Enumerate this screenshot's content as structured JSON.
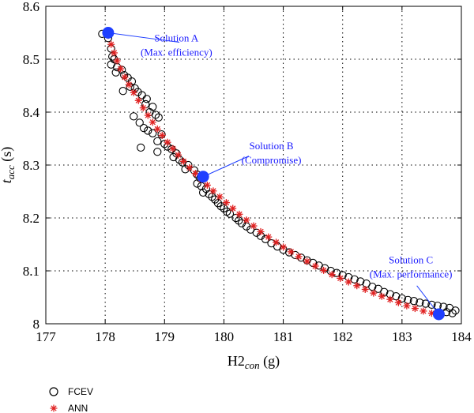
{
  "chart_data": {
    "type": "scatter",
    "xlabel": "H2",
    "xlabel_sub": "con",
    "xlabel_unit": " (g)",
    "ylabel": "t",
    "ylabel_sub": "acc",
    "ylabel_unit": " (s)",
    "xlim": [
      177,
      184
    ],
    "ylim": [
      8,
      8.6
    ],
    "xticks": [
      177,
      178,
      179,
      180,
      181,
      182,
      183,
      184
    ],
    "xtick_labels": [
      "177",
      "178",
      "179",
      "180",
      "181",
      "182",
      "183",
      "184"
    ],
    "yticks": [
      8,
      8.1,
      8.2,
      8.3,
      8.4,
      8.5,
      8.6
    ],
    "ytick_labels": [
      "8",
      "8.1",
      "8.2",
      "8.3",
      "8.4",
      "8.5",
      "8.6"
    ],
    "grid": true,
    "legend_position": "bottom-left",
    "series": [
      {
        "name": "FCEV",
        "marker": "open-circle",
        "color": "#000000",
        "points": [
          [
            177.95,
            8.548
          ],
          [
            178.05,
            8.54
          ],
          [
            178.1,
            8.52
          ],
          [
            178.12,
            8.505
          ],
          [
            178.15,
            8.5
          ],
          [
            178.1,
            8.49
          ],
          [
            178.2,
            8.485
          ],
          [
            178.28,
            8.48
          ],
          [
            178.18,
            8.475
          ],
          [
            178.32,
            8.47
          ],
          [
            178.38,
            8.465
          ],
          [
            178.45,
            8.458
          ],
          [
            178.42,
            8.448
          ],
          [
            178.5,
            8.445
          ],
          [
            178.3,
            8.44
          ],
          [
            178.55,
            8.438
          ],
          [
            178.62,
            8.432
          ],
          [
            178.7,
            8.425
          ],
          [
            178.68,
            8.415
          ],
          [
            178.8,
            8.41
          ],
          [
            178.75,
            8.4
          ],
          [
            178.85,
            8.395
          ],
          [
            178.9,
            8.39
          ],
          [
            178.48,
            8.392
          ],
          [
            178.58,
            8.38
          ],
          [
            178.65,
            8.37
          ],
          [
            178.72,
            8.365
          ],
          [
            178.8,
            8.36
          ],
          [
            178.95,
            8.358
          ],
          [
            178.88,
            8.345
          ],
          [
            179.0,
            8.34
          ],
          [
            179.05,
            8.335
          ],
          [
            179.12,
            8.33
          ],
          [
            178.6,
            8.333
          ],
          [
            178.88,
            8.325
          ],
          [
            179.2,
            8.322
          ],
          [
            179.15,
            8.315
          ],
          [
            179.25,
            8.31
          ],
          [
            179.3,
            8.305
          ],
          [
            179.4,
            8.3
          ],
          [
            179.35,
            8.292
          ],
          [
            179.5,
            8.29
          ],
          [
            179.55,
            8.282
          ],
          [
            179.6,
            8.275
          ],
          [
            179.55,
            8.265
          ],
          [
            179.62,
            8.26
          ],
          [
            179.7,
            8.255
          ],
          [
            179.65,
            8.248
          ],
          [
            179.75,
            8.245
          ],
          [
            179.8,
            8.24
          ],
          [
            179.85,
            8.235
          ],
          [
            179.9,
            8.228
          ],
          [
            179.95,
            8.222
          ],
          [
            180.0,
            8.218
          ],
          [
            180.05,
            8.212
          ],
          [
            180.1,
            8.208
          ],
          [
            180.2,
            8.2
          ],
          [
            180.25,
            8.195
          ],
          [
            180.3,
            8.19
          ],
          [
            180.38,
            8.184
          ],
          [
            180.45,
            8.178
          ],
          [
            180.55,
            8.172
          ],
          [
            180.62,
            8.166
          ],
          [
            180.7,
            8.16
          ],
          [
            180.8,
            8.152
          ],
          [
            180.9,
            8.146
          ],
          [
            181.0,
            8.14
          ],
          [
            181.1,
            8.135
          ],
          [
            181.2,
            8.13
          ],
          [
            181.3,
            8.125
          ],
          [
            181.4,
            8.12
          ],
          [
            181.5,
            8.115
          ],
          [
            181.6,
            8.11
          ],
          [
            181.7,
            8.105
          ],
          [
            181.8,
            8.1
          ],
          [
            181.9,
            8.096
          ],
          [
            182.0,
            8.092
          ],
          [
            182.1,
            8.088
          ],
          [
            182.2,
            8.084
          ],
          [
            182.3,
            8.08
          ],
          [
            182.4,
            8.076
          ],
          [
            182.5,
            8.07
          ],
          [
            182.6,
            8.066
          ],
          [
            182.7,
            8.06
          ],
          [
            182.8,
            8.056
          ],
          [
            182.9,
            8.052
          ],
          [
            183.0,
            8.048
          ],
          [
            183.1,
            8.045
          ],
          [
            183.2,
            8.043
          ],
          [
            183.3,
            8.04
          ],
          [
            183.4,
            8.038
          ],
          [
            183.5,
            8.036
          ],
          [
            183.6,
            8.034
          ],
          [
            183.7,
            8.032
          ],
          [
            183.8,
            8.03
          ],
          [
            183.9,
            8.025
          ],
          [
            183.85,
            8.02
          ],
          [
            183.75,
            8.022
          ]
        ]
      },
      {
        "name": "ANN",
        "marker": "asterisk",
        "color": "#e02020",
        "points": [
          [
            178.05,
            8.545
          ],
          [
            178.1,
            8.528
          ],
          [
            178.15,
            8.512
          ],
          [
            178.2,
            8.497
          ],
          [
            178.26,
            8.482
          ],
          [
            178.33,
            8.466
          ],
          [
            178.4,
            8.452
          ],
          [
            178.48,
            8.437
          ],
          [
            178.56,
            8.422
          ],
          [
            178.64,
            8.408
          ],
          [
            178.72,
            8.394
          ],
          [
            178.8,
            8.381
          ],
          [
            178.88,
            8.368
          ],
          [
            178.96,
            8.356
          ],
          [
            179.05,
            8.343
          ],
          [
            179.14,
            8.331
          ],
          [
            179.23,
            8.319
          ],
          [
            179.32,
            8.307
          ],
          [
            179.42,
            8.295
          ],
          [
            179.52,
            8.284
          ],
          [
            179.62,
            8.273
          ],
          [
            179.72,
            8.262
          ],
          [
            179.82,
            8.251
          ],
          [
            179.93,
            8.24
          ],
          [
            180.04,
            8.229
          ],
          [
            180.15,
            8.218
          ],
          [
            180.26,
            8.207
          ],
          [
            180.38,
            8.196
          ],
          [
            180.5,
            8.185
          ],
          [
            180.62,
            8.174
          ],
          [
            180.75,
            8.164
          ],
          [
            180.88,
            8.154
          ],
          [
            181.0,
            8.145
          ],
          [
            181.13,
            8.136
          ],
          [
            181.26,
            8.127
          ],
          [
            181.4,
            8.118
          ],
          [
            181.54,
            8.109
          ],
          [
            181.68,
            8.101
          ],
          [
            181.82,
            8.093
          ],
          [
            181.96,
            8.086
          ],
          [
            182.1,
            8.079
          ],
          [
            182.24,
            8.072
          ],
          [
            182.38,
            8.065
          ],
          [
            182.52,
            8.058
          ],
          [
            182.66,
            8.052
          ],
          [
            182.8,
            8.046
          ],
          [
            182.94,
            8.04
          ],
          [
            183.08,
            8.034
          ],
          [
            183.22,
            8.029
          ],
          [
            183.36,
            8.024
          ],
          [
            183.5,
            8.02
          ],
          [
            183.62,
            8.017
          ]
        ]
      }
    ],
    "highlights": [
      {
        "x": 178.05,
        "y": 8.55,
        "color": "#1f3fff"
      },
      {
        "x": 179.65,
        "y": 8.278,
        "color": "#1f3fff"
      },
      {
        "x": 183.62,
        "y": 8.018,
        "color": "#1f3fff"
      }
    ],
    "annotations": [
      {
        "line1": "Solution A",
        "line2": "(Max. efficiency)",
        "target": [
          178.05,
          8.55
        ],
        "text_at": [
          179.2,
          8.522
        ],
        "line_to": [
          179.25,
          8.532
        ]
      },
      {
        "line1": "Solution B",
        "line2": "(Compromise)",
        "target": [
          179.65,
          8.278
        ],
        "text_at": [
          180.8,
          8.318
        ],
        "line_to": [
          180.42,
          8.317
        ]
      },
      {
        "line1": "Solution C",
        "line2": "(Max. performance)",
        "target": [
          183.62,
          8.018
        ],
        "text_at": [
          183.15,
          8.102
        ],
        "line_to": [
          183.25,
          8.072
        ]
      }
    ]
  }
}
